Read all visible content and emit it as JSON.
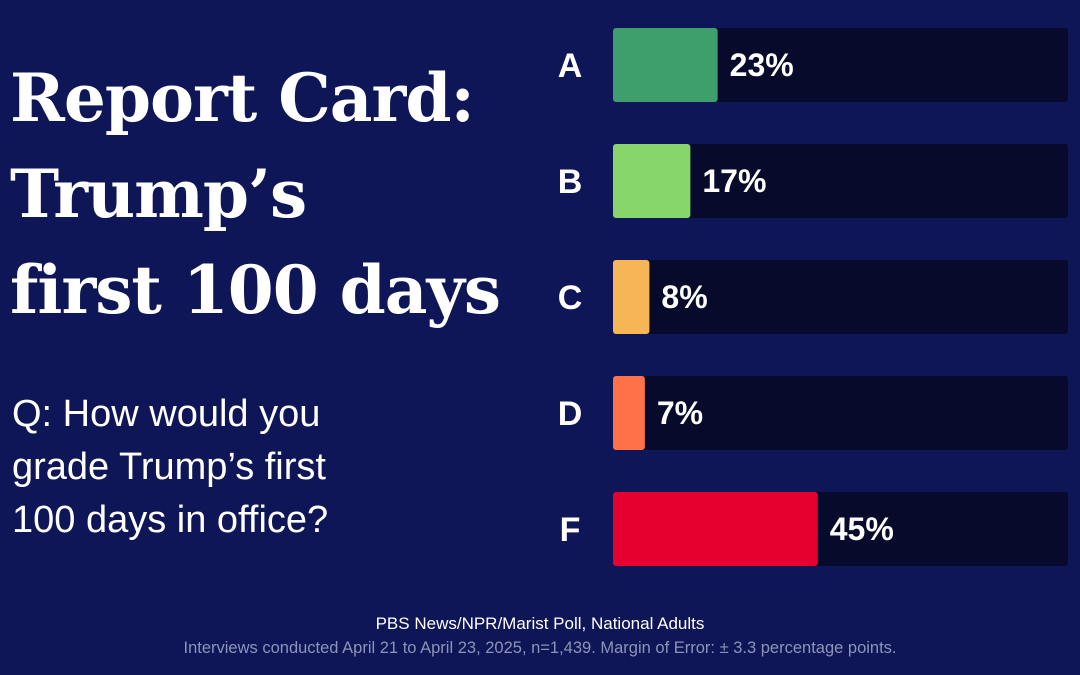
{
  "title_lines": [
    "Report Card:",
    "Trump’s",
    "first 100 days"
  ],
  "question_lines": [
    "Q: How would you",
    "grade Trump’s first",
    "100 days in office?"
  ],
  "source": "PBS News/NPR/Marist Poll, National Adults",
  "note": "Interviews conducted April 21 to April 23, 2025, n=1,439. Margin of Error: ± 3.3 percentage points.",
  "colors": {
    "background": "#0e1657",
    "track": "#070a2b",
    "A": "#3f9f6c",
    "B": "#87d66b",
    "C": "#f6b655",
    "D": "#ff7148",
    "F": "#e5002f"
  },
  "chart_data": {
    "type": "bar",
    "orientation": "horizontal",
    "categories": [
      "A",
      "B",
      "C",
      "D",
      "F"
    ],
    "values": [
      23,
      17,
      8,
      7,
      45
    ],
    "value_labels": [
      "23%",
      "17%",
      "8%",
      "7%",
      "45%"
    ],
    "xlim": [
      0,
      100
    ],
    "grid": false
  }
}
